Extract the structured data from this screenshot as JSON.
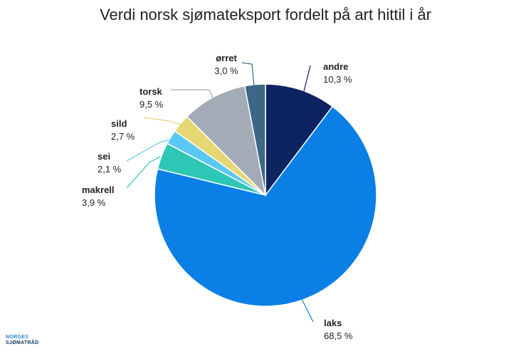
{
  "logo": {
    "line1": "NORGES",
    "line2": "SJØMATRÅD"
  },
  "chart_data": {
    "type": "pie",
    "title": "Verdi norsk sjømateksport fordelt på art hittil i år",
    "start_angle_deg": 0,
    "direction": "clockwise",
    "slices": [
      {
        "name": "andre",
        "value": 10.3,
        "value_label": "10,3 %",
        "color": "#0c2460"
      },
      {
        "name": "laks",
        "value": 68.5,
        "value_label": "68,5 %",
        "color": "#0a7fe6"
      },
      {
        "name": "makrell",
        "value": 3.9,
        "value_label": "3,9 %",
        "color": "#2ec6b4"
      },
      {
        "name": "sei",
        "value": 2.1,
        "value_label": "2,1 %",
        "color": "#5bc7f4"
      },
      {
        "name": "sild",
        "value": 2.7,
        "value_label": "2,7 %",
        "color": "#e6d774"
      },
      {
        "name": "torsk",
        "value": 9.5,
        "value_label": "9,5 %",
        "color": "#a2abb6"
      },
      {
        "name": "ørret",
        "value": 3.0,
        "value_label": "3,0 %",
        "color": "#3d6787"
      }
    ]
  }
}
